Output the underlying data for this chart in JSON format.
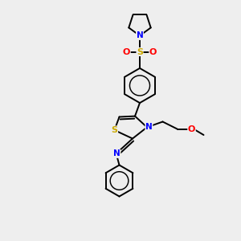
{
  "bg_color": "#eeeeee",
  "atom_colors": {
    "N": "#0000ff",
    "S": "#ccaa00",
    "O": "#ff0000",
    "C": "#000000"
  },
  "bond_color": "#000000",
  "bond_width": 1.4
}
